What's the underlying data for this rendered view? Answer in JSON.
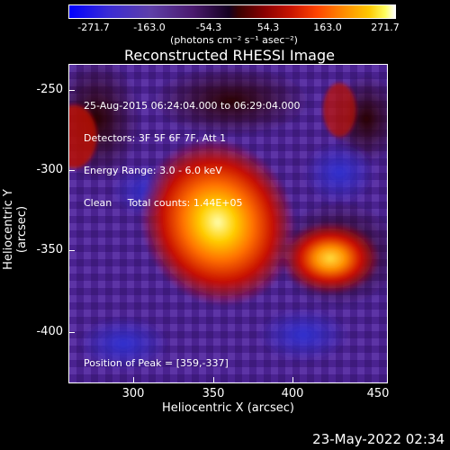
{
  "colorbar": {
    "ticks": [
      "-271.7",
      "-163.0",
      "-54.3",
      "54.3",
      "163.0",
      "271.7"
    ],
    "units": "(photons cm⁻² s⁻¹ asec⁻²)"
  },
  "plot": {
    "title": "Reconstructed RHESSI Image",
    "info_lines": [
      "25-Aug-2015 06:24:04.000 to 06:29:04.000",
      "Detectors: 3F 5F 6F 7F, Att 1",
      "Energy Range: 3.0 - 6.0 keV",
      "Clean     Total counts: 1.44E+05"
    ],
    "peak": "Position of Peak = [359,-337]",
    "x_axis": {
      "label": "Heliocentric X (arcsec)",
      "ticks": [
        "300",
        "350",
        "400",
        "450"
      ]
    },
    "y_axis": {
      "label": "Heliocentric Y (arcsec)",
      "ticks": [
        "-250",
        "-300",
        "-350",
        "-400"
      ]
    }
  },
  "footer": {
    "timestamp": "23-May-2022 02:34"
  }
}
